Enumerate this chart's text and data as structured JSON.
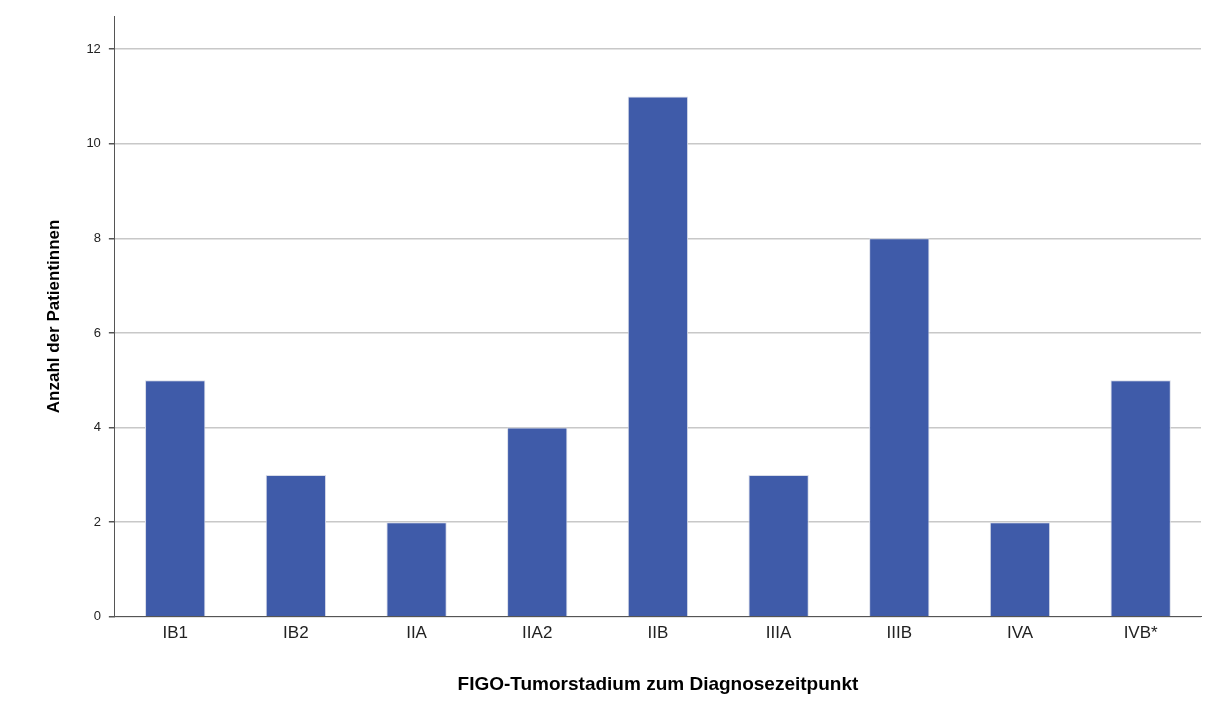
{
  "chart_data": {
    "type": "bar",
    "xlabel": "FIGO-Tumorstadium zum Diagnosezeitpunkt",
    "ylabel": "Anzahl der Patientinnen",
    "categories": [
      "IB1",
      "IB2",
      "IIA",
      "IIA2",
      "IIB",
      "IIIA",
      "IIIB",
      "IVA",
      "IVB*"
    ],
    "values": [
      5,
      3,
      2,
      4,
      11,
      3,
      8,
      2,
      5
    ],
    "color": "#3f5ba9",
    "ylim": [
      0,
      12.7
    ],
    "yticks": [
      0,
      2,
      4,
      6,
      8,
      10,
      12
    ],
    "grid": "y"
  }
}
